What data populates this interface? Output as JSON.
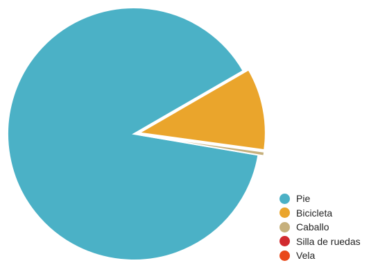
{
  "chart_data": {
    "type": "pie",
    "title": "",
    "legend_position": "bottom-right",
    "slices": [
      {
        "label": "Pie",
        "value": 89.0,
        "color": "#4BB1C6"
      },
      {
        "label": "Bicicleta",
        "value": 10.5,
        "color": "#EAA52C"
      },
      {
        "label": "Caballo",
        "value": 0.5,
        "color": "#C6B07C"
      },
      {
        "label": "Silla de ruedas",
        "value": 0,
        "color": "#D12A2F"
      },
      {
        "label": "Vela",
        "value": 0,
        "color": "#E9491A"
      }
    ]
  }
}
